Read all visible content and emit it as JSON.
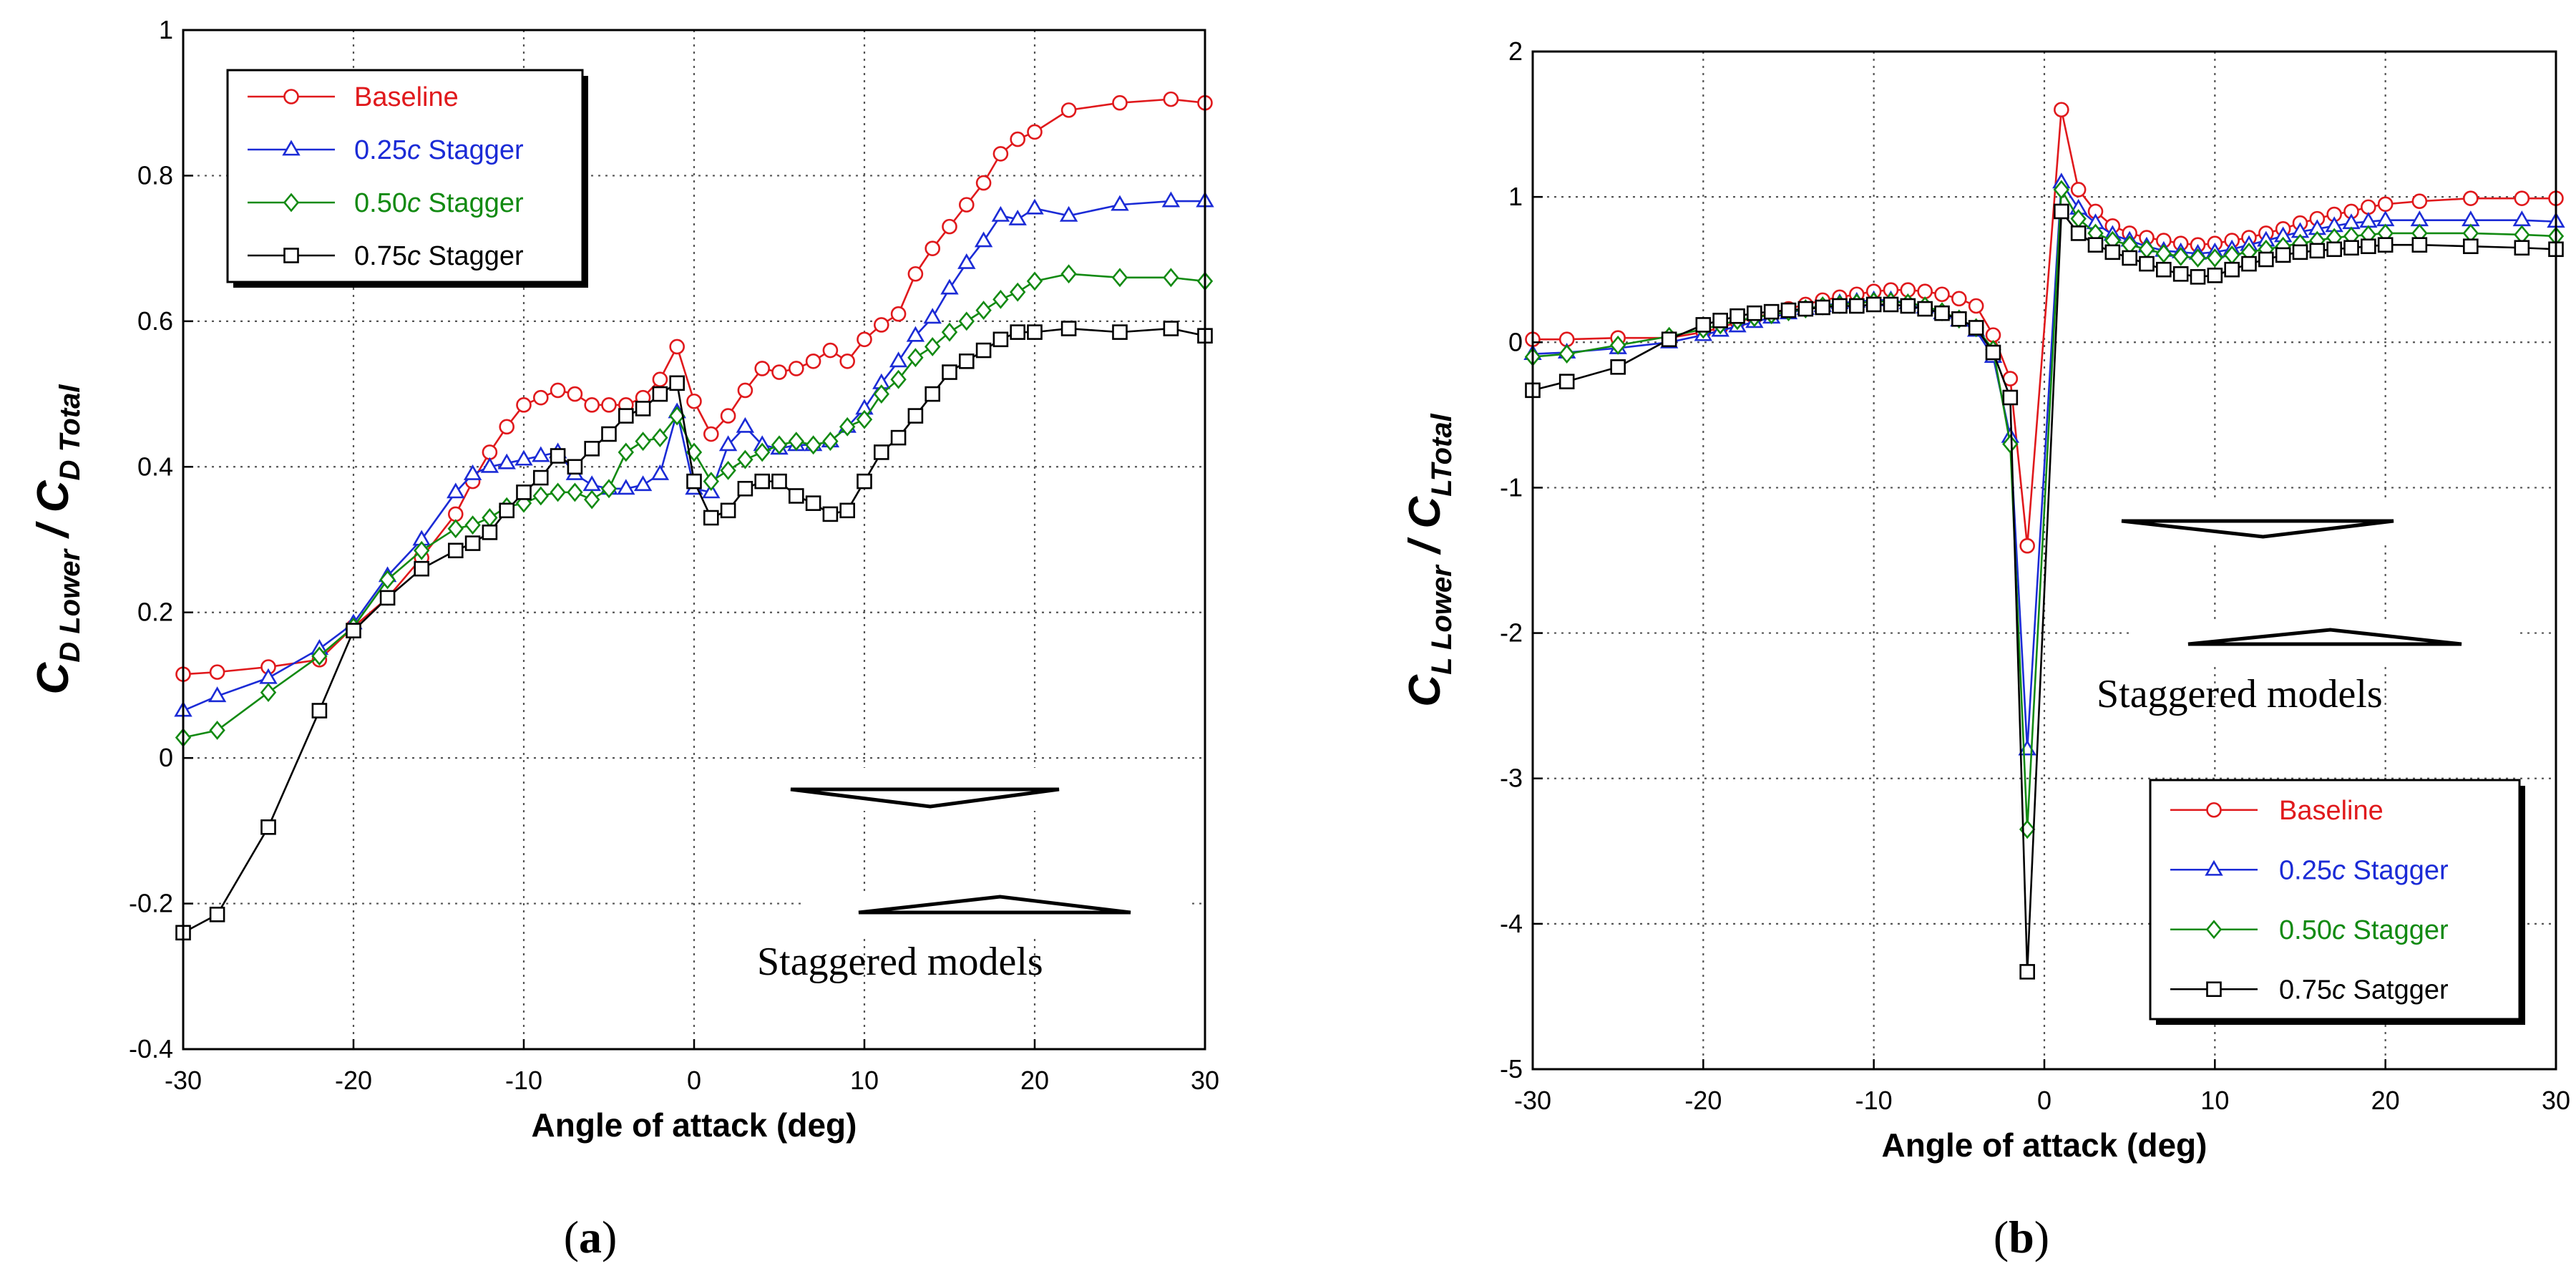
{
  "chart_data": [
    {
      "type": "line",
      "panel_label": "(a)",
      "panel_letter": "a",
      "xlabel": "Angle of attack (deg)",
      "ylabel": {
        "main1": "C",
        "sub1": "D Lower",
        "slash": " / ",
        "main2": "C",
        "sub2": "D Total"
      },
      "xlim": [
        -30,
        30
      ],
      "ylim": [
        -0.4,
        1
      ],
      "xticks": [
        -30,
        -20,
        -10,
        0,
        10,
        20,
        30
      ],
      "yticks": [
        -0.4,
        -0.2,
        0,
        0.2,
        0.4,
        0.6,
        0.8,
        1
      ],
      "ytick_labels": [
        "-0.4",
        "-0.2",
        "0",
        "0.2",
        "0.4",
        "0.6",
        "0.8",
        "1"
      ],
      "grid": true,
      "legend_position": "top-left",
      "annotation": "Staggered models",
      "series": [
        {
          "name": "Baseline",
          "name_prefix": "",
          "name_italic": "",
          "name_suffix": "Baseline",
          "color": "#e0191c",
          "marker": "circle",
          "x": [
            -30,
            -28,
            -25,
            -22,
            -20,
            -18,
            -16,
            -14,
            -13,
            -12,
            -11,
            -10,
            -9,
            -8,
            -7,
            -6,
            -5,
            -4,
            -3,
            -2,
            -1,
            0,
            1,
            2,
            3,
            4,
            5,
            6,
            7,
            8,
            9,
            10,
            11,
            12,
            13,
            14,
            15,
            16,
            17,
            18,
            19,
            20,
            22,
            25,
            28,
            30
          ],
          "y": [
            0.115,
            0.118,
            0.125,
            0.135,
            0.18,
            0.22,
            0.275,
            0.335,
            0.38,
            0.42,
            0.455,
            0.485,
            0.495,
            0.505,
            0.5,
            0.485,
            0.485,
            0.485,
            0.495,
            0.52,
            0.565,
            0.49,
            0.445,
            0.47,
            0.505,
            0.535,
            0.53,
            0.535,
            0.545,
            0.56,
            0.545,
            0.575,
            0.595,
            0.61,
            0.665,
            0.7,
            0.73,
            0.76,
            0.79,
            0.83,
            0.85,
            0.86,
            0.89,
            0.9,
            0.905,
            0.9
          ]
        },
        {
          "name": "0.25c Stagger",
          "name_prefix": "0.25",
          "name_italic": "c",
          "name_suffix": " Stagger",
          "color": "#1b2bd6",
          "marker": "triangle",
          "x": [
            -30,
            -28,
            -25,
            -22,
            -20,
            -18,
            -16,
            -14,
            -13,
            -12,
            -11,
            -10,
            -9,
            -8,
            -7,
            -6,
            -5,
            -4,
            -3,
            -2,
            -1,
            0,
            1,
            2,
            3,
            4,
            5,
            6,
            7,
            8,
            9,
            10,
            11,
            12,
            13,
            14,
            15,
            16,
            17,
            18,
            19,
            20,
            22,
            25,
            28,
            30
          ],
          "y": [
            0.065,
            0.085,
            0.11,
            0.15,
            0.185,
            0.25,
            0.3,
            0.365,
            0.39,
            0.4,
            0.405,
            0.41,
            0.415,
            0.42,
            0.39,
            0.375,
            0.37,
            0.37,
            0.375,
            0.39,
            0.475,
            0.37,
            0.365,
            0.43,
            0.455,
            0.43,
            0.425,
            0.43,
            0.43,
            0.435,
            0.455,
            0.48,
            0.515,
            0.545,
            0.58,
            0.605,
            0.645,
            0.68,
            0.71,
            0.745,
            0.74,
            0.755,
            0.745,
            0.76,
            0.765,
            0.765
          ]
        },
        {
          "name": "0.50c Stagger",
          "name_prefix": "0.50",
          "name_italic": "c",
          "name_suffix": " Stagger",
          "color": "#128a12",
          "marker": "diamond",
          "x": [
            -30,
            -28,
            -25,
            -22,
            -20,
            -18,
            -16,
            -14,
            -13,
            -12,
            -11,
            -10,
            -9,
            -8,
            -7,
            -6,
            -5,
            -4,
            -3,
            -2,
            -1,
            0,
            1,
            2,
            3,
            4,
            5,
            6,
            7,
            8,
            9,
            10,
            11,
            12,
            13,
            14,
            15,
            16,
            17,
            18,
            19,
            20,
            22,
            25,
            28,
            30
          ],
          "y": [
            0.028,
            0.038,
            0.09,
            0.14,
            0.18,
            0.245,
            0.285,
            0.315,
            0.32,
            0.33,
            0.345,
            0.35,
            0.36,
            0.365,
            0.365,
            0.355,
            0.37,
            0.42,
            0.435,
            0.44,
            0.47,
            0.42,
            0.38,
            0.395,
            0.41,
            0.42,
            0.43,
            0.435,
            0.43,
            0.435,
            0.455,
            0.465,
            0.5,
            0.52,
            0.55,
            0.565,
            0.585,
            0.6,
            0.615,
            0.63,
            0.64,
            0.655,
            0.665,
            0.66,
            0.66,
            0.655
          ]
        },
        {
          "name": "0.75c Stagger",
          "name_prefix": "0.75",
          "name_italic": "c",
          "name_suffix": " Stagger",
          "color": "#000000",
          "marker": "square",
          "x": [
            -30,
            -28,
            -25,
            -22,
            -20,
            -18,
            -16,
            -14,
            -13,
            -12,
            -11,
            -10,
            -9,
            -8,
            -7,
            -6,
            -5,
            -4,
            -3,
            -2,
            -1,
            0,
            1,
            2,
            3,
            4,
            5,
            6,
            7,
            8,
            9,
            10,
            11,
            12,
            13,
            14,
            15,
            16,
            17,
            18,
            19,
            20,
            22,
            25,
            28,
            30
          ],
          "y": [
            -0.24,
            -0.215,
            -0.095,
            0.065,
            0.175,
            0.22,
            0.26,
            0.285,
            0.295,
            0.31,
            0.34,
            0.365,
            0.385,
            0.415,
            0.4,
            0.425,
            0.445,
            0.47,
            0.48,
            0.5,
            0.515,
            0.38,
            0.33,
            0.34,
            0.37,
            0.38,
            0.38,
            0.36,
            0.35,
            0.335,
            0.34,
            0.38,
            0.42,
            0.44,
            0.47,
            0.5,
            0.53,
            0.545,
            0.56,
            0.575,
            0.585,
            0.585,
            0.59,
            0.585,
            0.59,
            0.58
          ]
        }
      ]
    },
    {
      "type": "line",
      "panel_label": "(b)",
      "panel_letter": "b",
      "xlabel": "Angle of attack (deg)",
      "ylabel": {
        "main1": "C",
        "sub1": "L Lower",
        "slash": " / ",
        "main2": "C",
        "sub2": "LTotal"
      },
      "xlim": [
        -30,
        30
      ],
      "ylim": [
        -5,
        2
      ],
      "xticks": [
        -30,
        -20,
        -10,
        0,
        10,
        20,
        30
      ],
      "yticks": [
        -5,
        -4,
        -3,
        -2,
        -1,
        0,
        1,
        2
      ],
      "ytick_labels": [
        "-5",
        "-4",
        "-3",
        "-2",
        "-1",
        "0",
        "1",
        "2"
      ],
      "grid": true,
      "legend_position": "bottom-right",
      "annotation": "Staggered models",
      "series": [
        {
          "name": "Baseline",
          "name_prefix": "",
          "name_italic": "",
          "name_suffix": "Baseline",
          "color": "#e0191c",
          "marker": "circle",
          "x": [
            -30,
            -28,
            -25,
            -22,
            -20,
            -19,
            -18,
            -17,
            -16,
            -15,
            -14,
            -13,
            -12,
            -11,
            -10,
            -9,
            -8,
            -7,
            -6,
            -5,
            -4,
            -3,
            -2,
            -1,
            1,
            2,
            3,
            4,
            5,
            6,
            7,
            8,
            9,
            10,
            11,
            12,
            13,
            14,
            15,
            16,
            17,
            18,
            19,
            20,
            22,
            25,
            28,
            30
          ],
          "y": [
            0.02,
            0.02,
            0.03,
            0.03,
            0.07,
            0.1,
            0.14,
            0.17,
            0.2,
            0.23,
            0.26,
            0.29,
            0.31,
            0.33,
            0.35,
            0.36,
            0.36,
            0.35,
            0.33,
            0.3,
            0.25,
            0.05,
            -0.25,
            -1.4,
            1.6,
            1.05,
            0.9,
            0.8,
            0.75,
            0.72,
            0.7,
            0.68,
            0.67,
            0.68,
            0.7,
            0.72,
            0.75,
            0.78,
            0.82,
            0.85,
            0.88,
            0.9,
            0.93,
            0.95,
            0.97,
            0.99,
            0.99,
            0.99
          ]
        },
        {
          "name": "0.25c Stagger",
          "name_prefix": "0.25",
          "name_italic": "c",
          "name_suffix": " Stagger",
          "color": "#1b2bd6",
          "marker": "triangle",
          "x": [
            -30,
            -28,
            -25,
            -22,
            -20,
            -19,
            -18,
            -17,
            -16,
            -15,
            -14,
            -13,
            -12,
            -11,
            -10,
            -9,
            -8,
            -7,
            -6,
            -5,
            -4,
            -3,
            -2,
            -1,
            1,
            2,
            3,
            4,
            5,
            6,
            7,
            8,
            9,
            10,
            11,
            12,
            13,
            14,
            15,
            16,
            17,
            18,
            19,
            20,
            22,
            25,
            28,
            30
          ],
          "y": [
            -0.08,
            -0.07,
            -0.04,
            0.0,
            0.05,
            0.08,
            0.11,
            0.14,
            0.17,
            0.2,
            0.23,
            0.25,
            0.27,
            0.28,
            0.29,
            0.29,
            0.27,
            0.24,
            0.2,
            0.15,
            0.08,
            -0.1,
            -0.65,
            -2.8,
            1.1,
            0.92,
            0.82,
            0.74,
            0.7,
            0.66,
            0.63,
            0.62,
            0.61,
            0.62,
            0.64,
            0.67,
            0.7,
            0.73,
            0.76,
            0.78,
            0.8,
            0.82,
            0.83,
            0.84,
            0.84,
            0.84,
            0.84,
            0.83
          ]
        },
        {
          "name": "0.50c Stagger",
          "name_prefix": "0.50",
          "name_italic": "c",
          "name_suffix": " Stagger",
          "color": "#128a12",
          "marker": "diamond",
          "x": [
            -30,
            -28,
            -25,
            -22,
            -20,
            -19,
            -18,
            -17,
            -16,
            -15,
            -14,
            -13,
            -12,
            -11,
            -10,
            -9,
            -8,
            -7,
            -6,
            -5,
            -4,
            -3,
            -2,
            -1,
            1,
            2,
            3,
            4,
            5,
            6,
            7,
            8,
            9,
            10,
            11,
            12,
            13,
            14,
            15,
            16,
            17,
            18,
            19,
            20,
            22,
            25,
            28,
            30
          ],
          "y": [
            -0.1,
            -0.08,
            -0.02,
            0.04,
            0.09,
            0.12,
            0.15,
            0.17,
            0.19,
            0.21,
            0.23,
            0.25,
            0.26,
            0.27,
            0.28,
            0.28,
            0.27,
            0.25,
            0.21,
            0.16,
            0.1,
            -0.05,
            -0.7,
            -3.35,
            1.05,
            0.85,
            0.75,
            0.7,
            0.67,
            0.64,
            0.61,
            0.59,
            0.58,
            0.58,
            0.6,
            0.62,
            0.64,
            0.66,
            0.68,
            0.7,
            0.72,
            0.73,
            0.74,
            0.75,
            0.75,
            0.75,
            0.74,
            0.73
          ]
        },
        {
          "name": "0.75c Satgger",
          "name_prefix": "0.75",
          "name_italic": "c",
          "name_suffix": " Satgger",
          "color": "#000000",
          "marker": "square",
          "x": [
            -30,
            -28,
            -25,
            -22,
            -20,
            -19,
            -18,
            -17,
            -16,
            -15,
            -14,
            -13,
            -12,
            -11,
            -10,
            -9,
            -8,
            -7,
            -6,
            -5,
            -4,
            -3,
            -2,
            -1,
            1,
            2,
            3,
            4,
            5,
            6,
            7,
            8,
            9,
            10,
            11,
            12,
            13,
            14,
            15,
            16,
            17,
            18,
            19,
            20,
            22,
            25,
            28,
            30
          ],
          "y": [
            -0.33,
            -0.27,
            -0.17,
            0.02,
            0.12,
            0.15,
            0.18,
            0.2,
            0.21,
            0.22,
            0.23,
            0.24,
            0.25,
            0.25,
            0.26,
            0.26,
            0.25,
            0.23,
            0.2,
            0.16,
            0.1,
            -0.07,
            -0.38,
            -4.33,
            0.9,
            0.75,
            0.67,
            0.62,
            0.58,
            0.54,
            0.5,
            0.47,
            0.45,
            0.46,
            0.5,
            0.54,
            0.57,
            0.6,
            0.62,
            0.63,
            0.64,
            0.65,
            0.66,
            0.67,
            0.67,
            0.66,
            0.65,
            0.64
          ]
        }
      ]
    }
  ]
}
